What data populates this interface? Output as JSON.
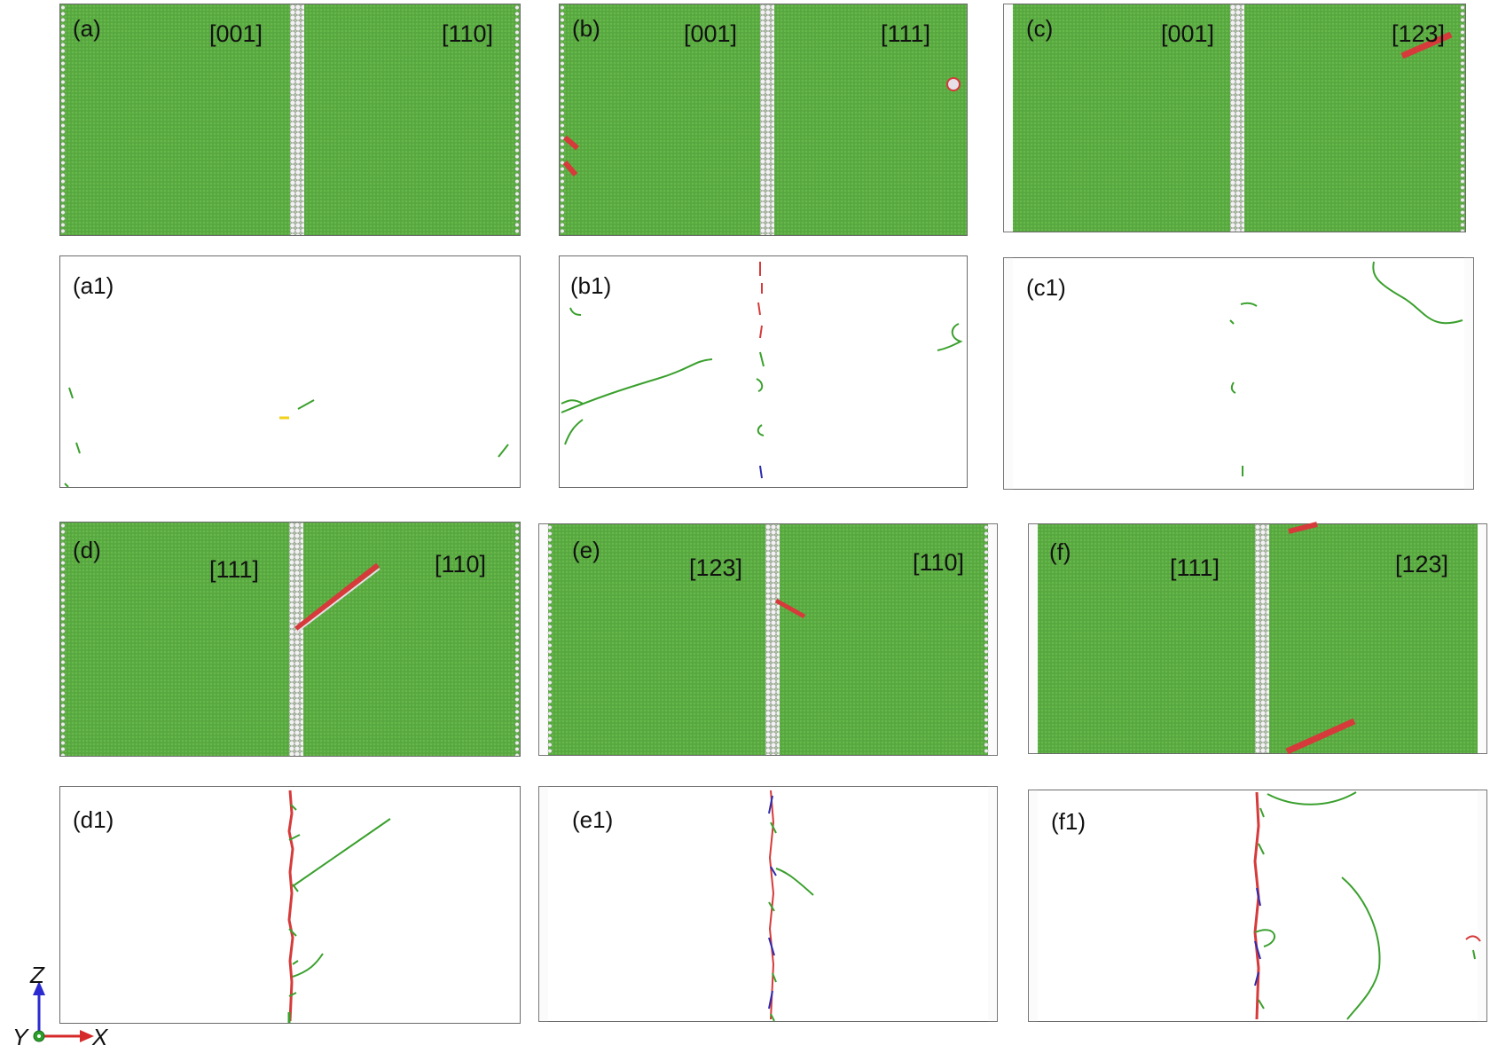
{
  "atom_panels": [
    {
      "id": "a",
      "label": "(a)",
      "left_orientation": "[001]",
      "right_orientation": "[110]"
    },
    {
      "id": "b",
      "label": "(b)",
      "left_orientation": "[001]",
      "right_orientation": "[111]"
    },
    {
      "id": "c",
      "label": "(c)",
      "left_orientation": "[001]",
      "right_orientation": "[123]"
    },
    {
      "id": "d",
      "label": "(d)",
      "left_orientation": "[111]",
      "right_orientation": "[110]"
    },
    {
      "id": "e",
      "label": "(e)",
      "left_orientation": "[123]",
      "right_orientation": "[110]"
    },
    {
      "id": "f",
      "label": "(f)",
      "left_orientation": "[111]",
      "right_orientation": "[123]"
    }
  ],
  "dislocation_panels": [
    {
      "id": "a1",
      "label": "(a1)"
    },
    {
      "id": "b1",
      "label": "(b1)"
    },
    {
      "id": "c1",
      "label": "(c1)"
    },
    {
      "id": "d1",
      "label": "(d1)"
    },
    {
      "id": "e1",
      "label": "(e1)"
    },
    {
      "id": "f1",
      "label": "(f1)"
    }
  ],
  "axes": {
    "z_label": "Z",
    "y_label": "Y",
    "x_label": "X"
  },
  "colors": {
    "fcc_atoms": "#57a63f",
    "gb_atoms": "#e6e1e8",
    "stacking_fault": "#d63a3a",
    "shockley_partial": "#3aa02d",
    "stair_rod": "#d63a3a",
    "hirth": "#f2d11a",
    "perfect": "#2b2bb0",
    "axis_z": "#2a2ad0",
    "axis_x": "#d62a2a",
    "axis_y": "#2aa02a"
  }
}
